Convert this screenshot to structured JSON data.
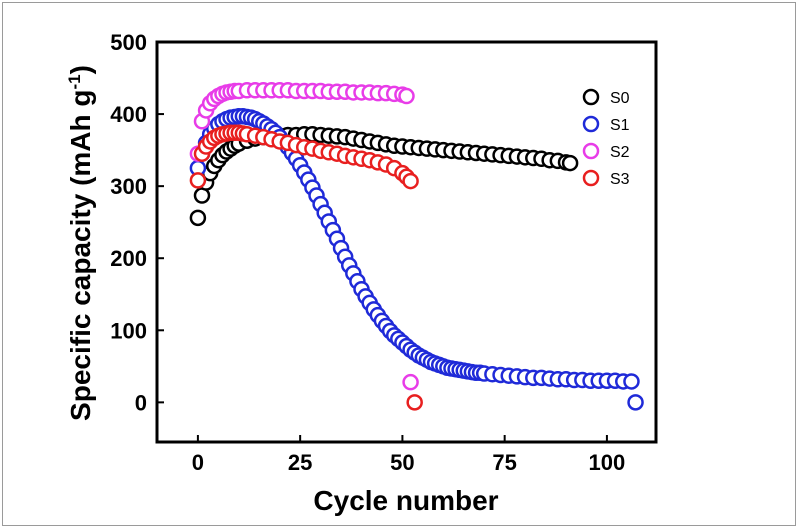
{
  "chart_data": {
    "type": "scatter",
    "title": "",
    "xlabel": "Cycle number",
    "ylabel_main": "Specific capacity (mAh g",
    "ylabel_exp": "-1",
    "ylabel_close": ")",
    "xlim": [
      -10,
      112
    ],
    "ylim": [
      -55,
      500
    ],
    "xticks": [
      0,
      25,
      50,
      75,
      100
    ],
    "yticks": [
      0,
      100,
      200,
      300,
      400,
      500
    ],
    "legend_position": "top-right",
    "series": [
      {
        "name": "S0",
        "color": "#000000",
        "x": [
          0,
          1,
          2,
          3,
          4,
          5,
          6,
          7,
          8,
          9,
          10,
          12,
          14,
          16,
          18,
          20,
          22,
          24,
          26,
          28,
          30,
          32,
          34,
          36,
          38,
          40,
          42,
          44,
          46,
          48,
          50,
          52,
          54,
          56,
          58,
          60,
          62,
          64,
          66,
          68,
          70,
          72,
          74,
          76,
          78,
          80,
          82,
          84,
          86,
          88,
          90,
          91
        ],
        "y": [
          256,
          287,
          305,
          318,
          328,
          336,
          343,
          348,
          352,
          356,
          359,
          363,
          366,
          368,
          369,
          370,
          371,
          371,
          372,
          372,
          371,
          370,
          369,
          368,
          366,
          364,
          362,
          360,
          358,
          356,
          355,
          354,
          353,
          352,
          351,
          350,
          349,
          348,
          347,
          346,
          345,
          344,
          343,
          342,
          341,
          340,
          339,
          338,
          336,
          335,
          333,
          332
        ]
      },
      {
        "name": "S1",
        "color": "#1f2ad8",
        "x": [
          0,
          1,
          2,
          3,
          4,
          5,
          6,
          7,
          8,
          9,
          10,
          11,
          12,
          13,
          14,
          15,
          16,
          17,
          18,
          19,
          20,
          21,
          22,
          23,
          24,
          25,
          26,
          27,
          28,
          29,
          30,
          31,
          32,
          33,
          34,
          35,
          36,
          37,
          38,
          39,
          40,
          41,
          42,
          43,
          44,
          45,
          46,
          47,
          48,
          49,
          50,
          51,
          52,
          53,
          54,
          55,
          56,
          57,
          58,
          59,
          60,
          61,
          62,
          63,
          64,
          65,
          66,
          67,
          68,
          69,
          70,
          72,
          74,
          76,
          78,
          80,
          82,
          84,
          86,
          88,
          90,
          92,
          94,
          96,
          98,
          100,
          102,
          104,
          106,
          107
        ],
        "y": [
          325,
          345,
          360,
          372,
          380,
          386,
          390,
          393,
          395,
          396,
          397,
          397,
          396,
          395,
          393,
          390,
          387,
          383,
          379,
          374,
          368,
          361,
          354,
          346,
          338,
          329,
          319,
          309,
          298,
          287,
          275,
          263,
          251,
          239,
          227,
          214,
          202,
          190,
          179,
          168,
          157,
          147,
          138,
          129,
          121,
          113,
          106,
          99,
          93,
          88,
          83,
          78,
          73,
          69,
          65,
          62,
          59,
          56,
          54,
          52,
          50,
          48,
          47,
          46,
          45,
          44,
          43,
          42,
          41,
          41,
          40,
          39,
          38,
          37,
          36,
          35,
          34,
          34,
          33,
          32,
          32,
          31,
          31,
          30,
          30,
          30,
          30,
          29,
          29,
          0
        ]
      },
      {
        "name": "S2",
        "color": "#e83ce8",
        "x": [
          0,
          1,
          2,
          3,
          4,
          5,
          6,
          7,
          8,
          9,
          10,
          12,
          14,
          16,
          18,
          20,
          22,
          24,
          26,
          28,
          30,
          32,
          34,
          36,
          38,
          40,
          42,
          44,
          46,
          48,
          50,
          51,
          52
        ],
        "y": [
          345,
          390,
          405,
          415,
          421,
          425,
          428,
          430,
          431,
          432,
          432,
          433,
          433,
          433,
          433,
          433,
          433,
          432,
          432,
          432,
          432,
          431,
          431,
          431,
          430,
          430,
          430,
          429,
          429,
          428,
          427,
          425,
          28
        ]
      },
      {
        "name": "S3",
        "color": "#e81f1f",
        "x": [
          0,
          1,
          2,
          3,
          4,
          5,
          6,
          7,
          8,
          9,
          10,
          11,
          12,
          14,
          16,
          18,
          20,
          22,
          24,
          26,
          28,
          30,
          32,
          34,
          36,
          38,
          40,
          42,
          44,
          46,
          48,
          50,
          51,
          52,
          53
        ],
        "y": [
          308,
          345,
          355,
          362,
          367,
          370,
          372,
          373,
          374,
          374,
          374,
          373,
          372,
          370,
          368,
          365,
          362,
          360,
          357,
          354,
          352,
          349,
          347,
          345,
          342,
          340,
          338,
          336,
          333,
          330,
          325,
          318,
          313,
          307,
          0
        ]
      }
    ]
  }
}
